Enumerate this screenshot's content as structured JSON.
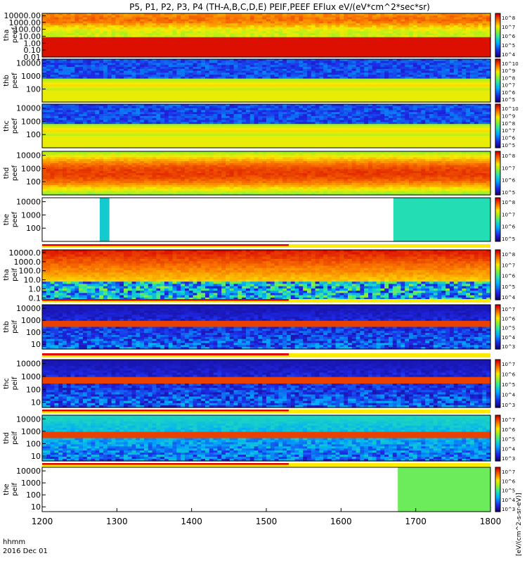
{
  "chart_data": {
    "type": "heatmap",
    "title": "P5, P1, P2, P3, P4 (TH-A,B,C,D,E) PEIF,PEEF EFlux eV/(eV*cm^2*sec*sr)",
    "xlabel_line1": "hhmm",
    "xlabel_line2": "2016 Dec 01",
    "x_ticks": [
      "1200",
      "1300",
      "1400",
      "1500",
      "1600",
      "1700",
      "1800"
    ],
    "xlim": [
      1200,
      1800
    ],
    "colorbar_label": "[eV/(cm^2-s-sr-eV)]",
    "panels": [
      {
        "ylabel": [
          "tha",
          "peef"
        ],
        "yticks": [
          "10000.00",
          "1000.00",
          "100.00",
          "10.00",
          "1.00",
          "0.10",
          "0.01"
        ],
        "log_ylim": [
          -2,
          4.3
        ],
        "cb_ticks": [
          "10^8",
          "10^7",
          "10^6",
          "10^5",
          "10^4"
        ],
        "has_strip": false
      },
      {
        "ylabel": [
          "thb",
          "peef"
        ],
        "yticks": [
          "10000",
          "1000",
          "100"
        ],
        "log_ylim": [
          1.0,
          4.3
        ],
        "cb_ticks": [
          "10^10",
          "10^9",
          "10^8",
          "10^7",
          "10^6",
          "10^5"
        ],
        "has_strip": false
      },
      {
        "ylabel": [
          "thc",
          "peef"
        ],
        "yticks": [
          "10000",
          "1000",
          "100"
        ],
        "log_ylim": [
          1.0,
          4.3
        ],
        "cb_ticks": [
          "10^10",
          "10^9",
          "10^8",
          "10^7",
          "10^6",
          "10^5"
        ],
        "has_strip": false
      },
      {
        "ylabel": [
          "thd",
          "peef"
        ],
        "yticks": [
          "10000",
          "1000",
          "100"
        ],
        "log_ylim": [
          1.0,
          4.3
        ],
        "cb_ticks": [
          "10^8",
          "10^7",
          "10^6",
          "10^5"
        ],
        "has_strip": false
      },
      {
        "ylabel": [
          "the",
          "peef"
        ],
        "yticks": [
          "10000",
          "1000",
          "100"
        ],
        "log_ylim": [
          1.0,
          4.3
        ],
        "cb_ticks": [
          "10^8",
          "10^7",
          "10^6",
          "10^5"
        ],
        "has_strip": true
      },
      {
        "ylabel": [
          "tha",
          "peif"
        ],
        "yticks": [
          "10000.0",
          "1000.0",
          "100.0",
          "10.0",
          "1.0",
          "0.1"
        ],
        "log_ylim": [
          -1.2,
          4.3
        ],
        "cb_ticks": [
          "10^8",
          "10^7",
          "10^6",
          "10^5",
          "10^4"
        ],
        "has_strip": true
      },
      {
        "ylabel": [
          "thb",
          "peif"
        ],
        "yticks": [
          "10000",
          "1000",
          "100",
          "10"
        ],
        "log_ylim": [
          0.6,
          4.3
        ],
        "cb_ticks": [
          "10^7",
          "10^6",
          "10^5",
          "10^4",
          "10^3"
        ],
        "has_strip": true
      },
      {
        "ylabel": [
          "thc",
          "peif"
        ],
        "yticks": [
          "10000",
          "1000",
          "100",
          "10"
        ],
        "log_ylim": [
          0.6,
          4.3
        ],
        "cb_ticks": [
          "10^7",
          "10^6",
          "10^5",
          "10^4",
          "10^3"
        ],
        "has_strip": true
      },
      {
        "ylabel": [
          "thd",
          "peif"
        ],
        "yticks": [
          "10000",
          "1000",
          "100",
          "10"
        ],
        "log_ylim": [
          0.6,
          4.3
        ],
        "cb_ticks": [
          "10^7",
          "10^6",
          "10^5",
          "10^4",
          "10^3"
        ],
        "has_strip": true
      },
      {
        "ylabel": [
          "the",
          "peif"
        ],
        "yticks": [
          "10000",
          "1000",
          "100",
          "10"
        ],
        "log_ylim": [
          0.6,
          4.3
        ],
        "cb_ticks": [
          "10^7",
          "10^6",
          "10^5",
          "10^4",
          "10^3"
        ],
        "has_strip": true
      }
    ]
  }
}
